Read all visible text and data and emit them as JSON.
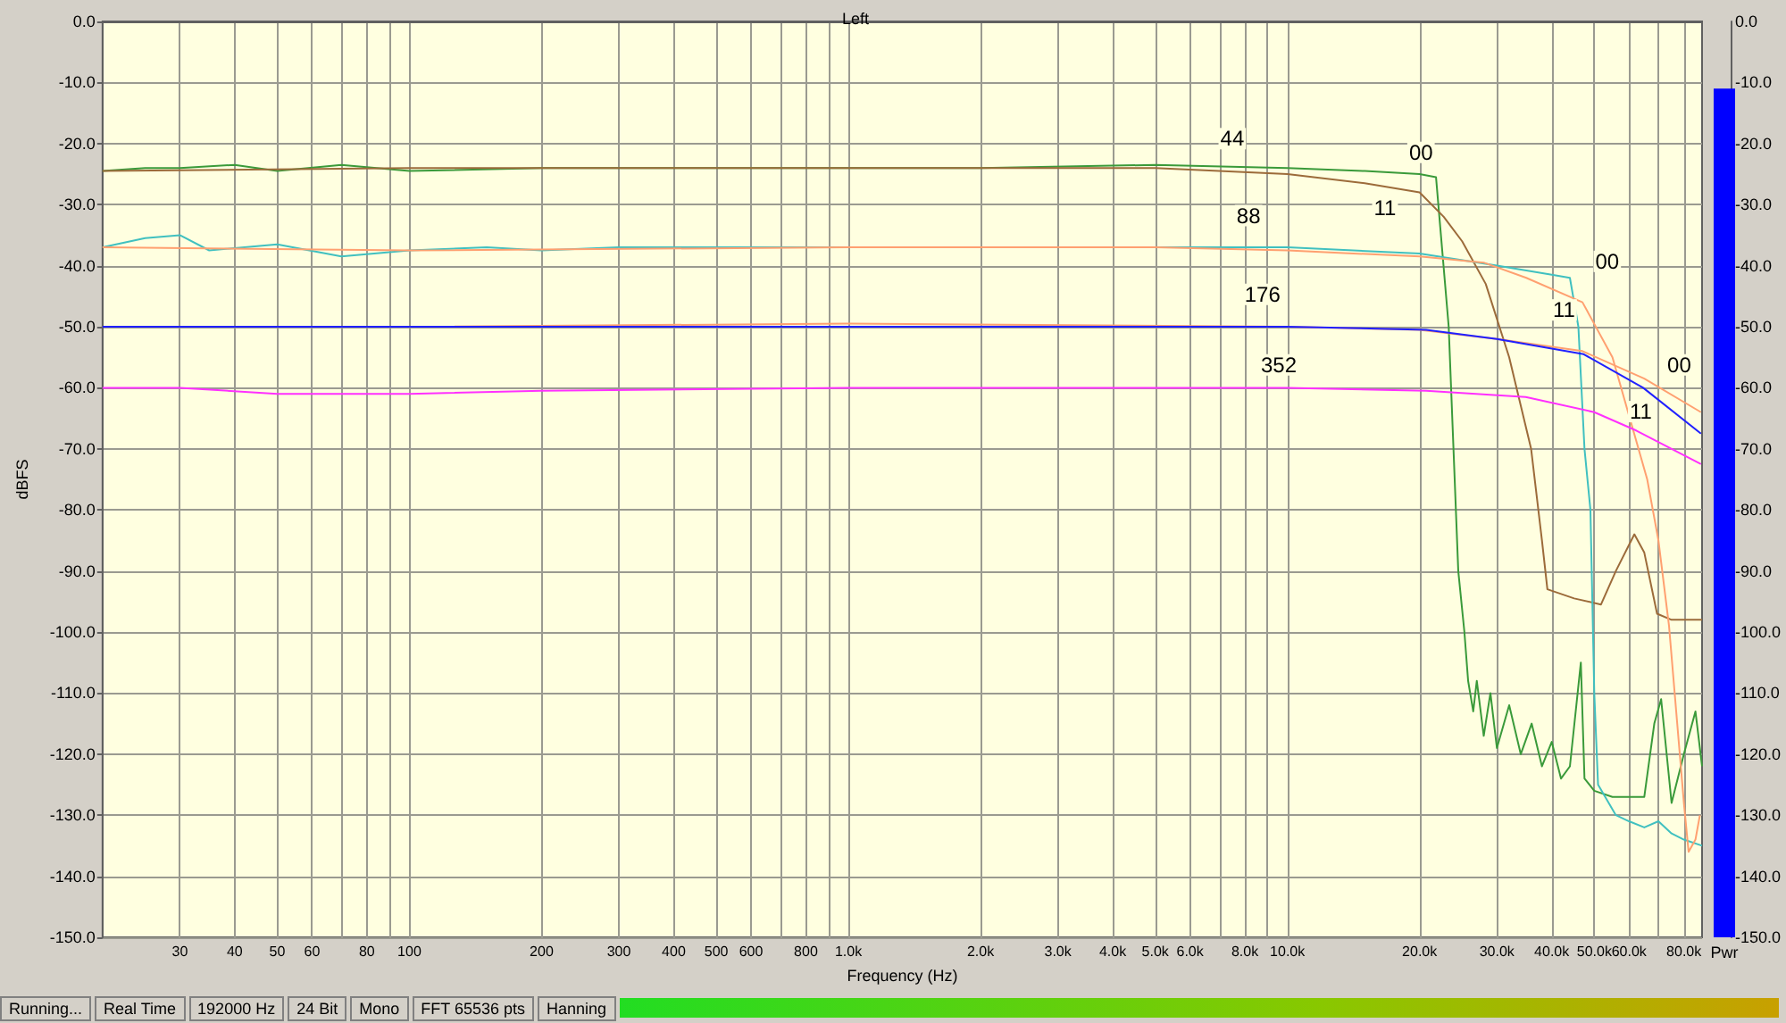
{
  "chart_data": [
    {
      "type": "line",
      "title": "Left",
      "xlabel": "Frequency (Hz)",
      "ylabel": "dBFS",
      "log": "x",
      "grid": true,
      "marker": "none",
      "line_style": "solid",
      "xlim": [
        20,
        88000
      ],
      "ylim": [
        -150,
        0
      ],
      "xticks": [
        30,
        40,
        50,
        60,
        {
          "value": 70,
          "label": null
        },
        80,
        {
          "value": 90,
          "label": null
        },
        100,
        200,
        300,
        400,
        500,
        600,
        {
          "value": 700,
          "label": null
        },
        800,
        {
          "value": 900,
          "label": null
        },
        {
          "value": 1000,
          "label": "1.0k"
        },
        {
          "value": 2000,
          "label": "2.0k"
        },
        {
          "value": 3000,
          "label": "3.0k"
        },
        {
          "value": 4000,
          "label": "4.0k"
        },
        {
          "value": 5000,
          "label": "5.0k"
        },
        {
          "value": 6000,
          "label": "6.0k"
        },
        {
          "value": 7000,
          "label": null
        },
        {
          "value": 8000,
          "label": "8.0k"
        },
        {
          "value": 9000,
          "label": null
        },
        {
          "value": 10000,
          "label": "10.0k"
        },
        {
          "value": 20000,
          "label": "20.0k"
        },
        {
          "value": 30000,
          "label": "30.0k"
        },
        {
          "value": 40000,
          "label": "40.0k"
        },
        {
          "value": 50000,
          "label": "50.0k"
        },
        {
          "value": 60000,
          "label": "60.0k"
        },
        {
          "value": 70000,
          "label": null
        },
        {
          "value": 80000,
          "label": "80.0k"
        }
      ],
      "yticks": [
        {
          "value": 0,
          "label": "0.0"
        },
        {
          "value": -10,
          "label": "-10.0"
        },
        {
          "value": -20,
          "label": "-20.0"
        },
        {
          "value": -30,
          "label": "-30.0"
        },
        {
          "value": -40,
          "label": "-40.0"
        },
        {
          "value": -50,
          "label": "-50.0"
        },
        {
          "value": -60,
          "label": "-60.0"
        },
        {
          "value": -70,
          "label": "-70.0"
        },
        {
          "value": -80,
          "label": "-80.0"
        },
        {
          "value": -90,
          "label": "-90.0"
        },
        {
          "value": -100,
          "label": "-100.0"
        },
        {
          "value": -110,
          "label": "-110.0"
        },
        {
          "value": -120,
          "label": "-120.0"
        },
        {
          "value": -130,
          "label": "-130.0"
        },
        {
          "value": -140,
          "label": "-140.0"
        },
        {
          "value": -150,
          "label": "-150.0"
        }
      ],
      "series": [
        {
          "color": "#3a9a3a",
          "x": [
            20,
            25,
            30,
            40,
            50,
            70,
            100,
            200,
            500,
            1000,
            2000,
            5000,
            10000,
            15000,
            20000,
            21800,
            23300,
            24500,
            25300,
            25800,
            26500,
            27000,
            28000,
            29000,
            30000,
            32000,
            34000,
            36000,
            38000,
            40000,
            42000,
            44000,
            46600,
            47500,
            50000,
            55000,
            60000,
            65000,
            68500,
            71000,
            75000,
            80000,
            85000,
            88000
          ],
          "values": [
            -24.5,
            -24,
            -24,
            -23.5,
            -24.5,
            -23.5,
            -24.5,
            -24,
            -24,
            -24,
            -24,
            -23.5,
            -24,
            -24.5,
            -25,
            -25.5,
            -50,
            -90,
            -100,
            -108,
            -113,
            -108,
            -117,
            -110,
            -119,
            -112,
            -120,
            -115,
            -122,
            -118,
            -124,
            -122,
            -105,
            -124,
            -126,
            -127,
            -127,
            -127,
            -115,
            -111,
            -128,
            -120,
            -113,
            -122
          ]
        },
        {
          "color": "#9c6b3a",
          "x": [
            20,
            100,
            1000,
            5000,
            10000,
            15000,
            20000,
            22700,
            25000,
            28300,
            32000,
            35900,
            38000,
            39100,
            45000,
            51800,
            56000,
            61700,
            65000,
            69500,
            75000,
            88000
          ],
          "values": [
            -24.5,
            -24,
            -24,
            -24,
            -25,
            -26.5,
            -28,
            -32,
            -36,
            -43,
            -55,
            -70,
            -85,
            -93,
            -94.5,
            -95.5,
            -90,
            -84,
            -87,
            -97,
            -98,
            -98
          ]
        },
        {
          "color": "#40c0c0",
          "x": [
            20,
            25,
            30,
            35,
            50,
            70,
            100,
            150,
            200,
            300,
            500,
            1000,
            2000,
            5000,
            10000,
            20000,
            30000,
            40000,
            44000,
            46000,
            47500,
            49000,
            50000,
            51000,
            56000,
            60000,
            65000,
            70000,
            75000,
            80000,
            88000
          ],
          "values": [
            -37,
            -35.5,
            -35,
            -37.5,
            -36.5,
            -38.5,
            -37.5,
            -37,
            -37.5,
            -37,
            -37,
            -37,
            -37,
            -37,
            -37,
            -38,
            -40,
            -41.5,
            -42,
            -50,
            -70,
            -80,
            -110,
            -125,
            -130,
            -131,
            -132,
            -131,
            -133,
            -134,
            -135
          ]
        },
        {
          "color": "#ffa070",
          "x": [
            20,
            100,
            1000,
            5000,
            10000,
            20000,
            28000,
            35000,
            47000,
            55000,
            66000,
            70000,
            74000,
            80000,
            82000,
            85000,
            87000
          ],
          "values": [
            -37,
            -37.5,
            -37,
            -37,
            -37.5,
            -38.5,
            -39.5,
            -42,
            -46,
            -55,
            -75,
            -85,
            -99,
            -128,
            -136,
            -134,
            -130
          ]
        },
        {
          "color": "#ffa070",
          "x": [
            20,
            100,
            1000,
            10000,
            20000,
            30000,
            47000,
            65000,
            87500
          ],
          "values": [
            -50,
            -50,
            -49.5,
            -50,
            -50.5,
            -52,
            -54,
            -58.5,
            -64
          ]
        },
        {
          "color": "#2020ff",
          "x": [
            20,
            100,
            1000,
            10000,
            20700,
            30000,
            47300,
            64600,
            87500
          ],
          "values": [
            -50,
            -50,
            -50,
            -50,
            -50.5,
            -52,
            -54.5,
            -60,
            -67.5
          ]
        },
        {
          "color": "#ff30ff",
          "x": [
            20,
            30,
            50,
            100,
            200,
            1000,
            10000,
            20700,
            34900,
            50000,
            62300,
            87500
          ],
          "values": [
            -60,
            -60,
            -61,
            -61,
            -60.5,
            -60,
            -60,
            -60.5,
            -61.5,
            -64,
            -67,
            -72.5
          ]
        }
      ],
      "annotations": [
        "44",
        "00",
        "11",
        "88",
        "00",
        "11",
        "176",
        "352",
        "00",
        "11",
        "Running...",
        "Real Time",
        "192000 Hz",
        "24 Bit",
        "Mono",
        "FFT 65536 pts",
        "Hanning"
      ]
    },
    {
      "type": "bar",
      "categories": [
        "Pwr"
      ],
      "base": [
        -150
      ],
      "values": [
        139
      ],
      "color": "#0000ff",
      "ylim": [
        -150,
        0
      ],
      "yticks": [
        {
          "value": 0,
          "label": "0.0"
        },
        {
          "value": -10,
          "label": "-10.0"
        },
        {
          "value": -20,
          "label": "-20.0"
        },
        {
          "value": -30,
          "label": "-30.0"
        },
        {
          "value": -40,
          "label": "-40.0"
        },
        {
          "value": -50,
          "label": "-50.0"
        },
        {
          "value": -60,
          "label": "-60.0"
        },
        {
          "value": -70,
          "label": "-70.0"
        },
        {
          "value": -80,
          "label": "-80.0"
        },
        {
          "value": -90,
          "label": "-90.0"
        },
        {
          "value": -100,
          "label": "-100.0"
        },
        {
          "value": -110,
          "label": "-110.0"
        },
        {
          "value": -120,
          "label": "-120.0"
        },
        {
          "value": -130,
          "label": "-130.0"
        },
        {
          "value": -140,
          "label": "-140.0"
        },
        {
          "value": -150,
          "label": "-150.0"
        }
      ]
    }
  ]
}
